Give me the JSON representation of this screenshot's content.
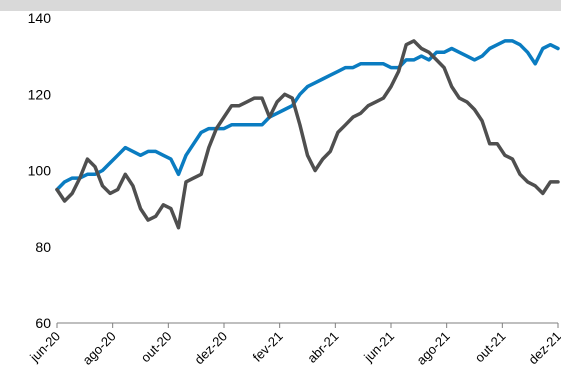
{
  "chart_data": {
    "type": "line",
    "title": "",
    "xlabel": "",
    "ylabel": "",
    "ylim": [
      60,
      140
    ],
    "yticks": [
      60,
      80,
      100,
      120,
      140
    ],
    "xticks": [
      "jun-20",
      "ago-20",
      "out-20",
      "dez-20",
      "fev-21",
      "abr-21",
      "jun-21",
      "ago-21",
      "out-21",
      "dez-21"
    ],
    "grid": false,
    "legend": "none",
    "series": [
      {
        "color": "#0a7cc1",
        "points": [
          [
            0,
            95
          ],
          [
            1,
            97
          ],
          [
            2,
            98
          ],
          [
            3,
            98
          ],
          [
            4,
            99
          ],
          [
            5,
            99
          ],
          [
            6,
            100
          ],
          [
            7,
            102
          ],
          [
            8,
            104
          ],
          [
            9,
            106
          ],
          [
            10,
            105
          ],
          [
            11,
            104
          ],
          [
            12,
            105
          ],
          [
            13,
            105
          ],
          [
            14,
            104
          ],
          [
            15,
            103
          ],
          [
            16,
            99
          ],
          [
            17,
            104
          ],
          [
            18,
            107
          ],
          [
            19,
            110
          ],
          [
            20,
            111
          ],
          [
            21,
            111
          ],
          [
            22,
            111
          ],
          [
            23,
            112
          ],
          [
            24,
            112
          ],
          [
            25,
            112
          ],
          [
            26,
            112
          ],
          [
            27,
            112
          ],
          [
            28,
            114
          ],
          [
            29,
            115
          ],
          [
            30,
            116
          ],
          [
            31,
            117
          ],
          [
            32,
            120
          ],
          [
            33,
            122
          ],
          [
            34,
            123
          ],
          [
            35,
            124
          ],
          [
            36,
            125
          ],
          [
            37,
            126
          ],
          [
            38,
            127
          ],
          [
            39,
            127
          ],
          [
            40,
            128
          ],
          [
            41,
            128
          ],
          [
            42,
            128
          ],
          [
            43,
            128
          ],
          [
            44,
            127
          ],
          [
            45,
            127
          ],
          [
            46,
            129
          ],
          [
            47,
            129
          ],
          [
            48,
            130
          ],
          [
            49,
            129
          ],
          [
            50,
            131
          ],
          [
            51,
            131
          ],
          [
            52,
            132
          ],
          [
            53,
            131
          ],
          [
            54,
            130
          ],
          [
            55,
            129
          ],
          [
            56,
            130
          ],
          [
            57,
            132
          ],
          [
            58,
            133
          ],
          [
            59,
            134
          ],
          [
            60,
            134
          ],
          [
            61,
            133
          ],
          [
            62,
            131
          ],
          [
            63,
            128
          ],
          [
            64,
            132
          ],
          [
            65,
            133
          ],
          [
            66,
            132
          ]
        ]
      },
      {
        "color": "#4f4f4f",
        "points": [
          [
            0,
            95
          ],
          [
            1,
            92
          ],
          [
            2,
            94
          ],
          [
            3,
            98
          ],
          [
            4,
            103
          ],
          [
            5,
            101
          ],
          [
            6,
            96
          ],
          [
            7,
            94
          ],
          [
            8,
            95
          ],
          [
            9,
            99
          ],
          [
            10,
            96
          ],
          [
            11,
            90
          ],
          [
            12,
            87
          ],
          [
            13,
            88
          ],
          [
            14,
            91
          ],
          [
            15,
            90
          ],
          [
            16,
            85
          ],
          [
            17,
            97
          ],
          [
            18,
            98
          ],
          [
            19,
            99
          ],
          [
            20,
            106
          ],
          [
            21,
            111
          ],
          [
            22,
            114
          ],
          [
            23,
            117
          ],
          [
            24,
            117
          ],
          [
            25,
            118
          ],
          [
            26,
            119
          ],
          [
            27,
            119
          ],
          [
            28,
            114
          ],
          [
            29,
            118
          ],
          [
            30,
            120
          ],
          [
            31,
            119
          ],
          [
            32,
            112
          ],
          [
            33,
            104
          ],
          [
            34,
            100
          ],
          [
            35,
            103
          ],
          [
            36,
            105
          ],
          [
            37,
            110
          ],
          [
            38,
            112
          ],
          [
            39,
            114
          ],
          [
            40,
            115
          ],
          [
            41,
            117
          ],
          [
            42,
            118
          ],
          [
            43,
            119
          ],
          [
            44,
            122
          ],
          [
            45,
            126
          ],
          [
            46,
            133
          ],
          [
            47,
            134
          ],
          [
            48,
            132
          ],
          [
            49,
            131
          ],
          [
            50,
            129
          ],
          [
            51,
            127
          ],
          [
            52,
            122
          ],
          [
            53,
            119
          ],
          [
            54,
            118
          ],
          [
            55,
            116
          ],
          [
            56,
            113
          ],
          [
            57,
            107
          ],
          [
            58,
            107
          ],
          [
            59,
            104
          ],
          [
            60,
            103
          ],
          [
            61,
            99
          ],
          [
            62,
            97
          ],
          [
            63,
            96
          ],
          [
            64,
            94
          ],
          [
            65,
            97
          ],
          [
            66,
            97
          ]
        ]
      }
    ]
  }
}
